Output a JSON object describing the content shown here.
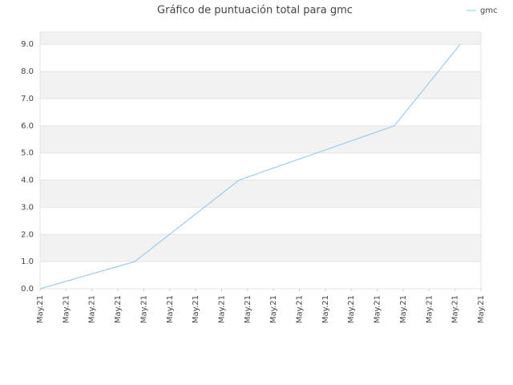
{
  "chart_data": {
    "type": "line",
    "title": "Gráfico de puntuación total para gmc",
    "x": [
      0,
      3.65,
      7.67,
      13.66,
      16.2
    ],
    "series": [
      {
        "name": "gmc",
        "color": "#88c4f2",
        "values": [
          0,
          1,
          4,
          6,
          9
        ]
      }
    ],
    "xlim": [
      0,
      17
    ],
    "xticks": [
      {
        "value": 0,
        "label": "May.21"
      },
      {
        "value": 1,
        "label": "May.21"
      },
      {
        "value": 2,
        "label": "May.21"
      },
      {
        "value": 3,
        "label": "May.21"
      },
      {
        "value": 4,
        "label": "May.21"
      },
      {
        "value": 5,
        "label": "May.21"
      },
      {
        "value": 6,
        "label": "May.21"
      },
      {
        "value": 7,
        "label": "May.21"
      },
      {
        "value": 8,
        "label": "May.21"
      },
      {
        "value": 9,
        "label": "May.21"
      },
      {
        "value": 10,
        "label": "May.21"
      },
      {
        "value": 11,
        "label": "May.21"
      },
      {
        "value": 12,
        "label": "May.21"
      },
      {
        "value": 13,
        "label": "May.21"
      },
      {
        "value": 14,
        "label": "May.21"
      },
      {
        "value": 15,
        "label": "May.21"
      },
      {
        "value": 16,
        "label": "May.21"
      },
      {
        "value": 17,
        "label": "May.21"
      }
    ],
    "ylim": [
      0,
      9.45
    ],
    "yticks": [
      {
        "value": 0,
        "label": "0.0"
      },
      {
        "value": 1,
        "label": "1.0"
      },
      {
        "value": 2,
        "label": "2.0"
      },
      {
        "value": 3,
        "label": "3.0"
      },
      {
        "value": 4,
        "label": "4.0"
      },
      {
        "value": 5,
        "label": "5.0"
      },
      {
        "value": 6,
        "label": "6.0"
      },
      {
        "value": 7,
        "label": "7.0"
      },
      {
        "value": 8,
        "label": "8.0"
      },
      {
        "value": 9,
        "label": "9.0"
      }
    ],
    "grid": true,
    "legend": "top-right"
  }
}
